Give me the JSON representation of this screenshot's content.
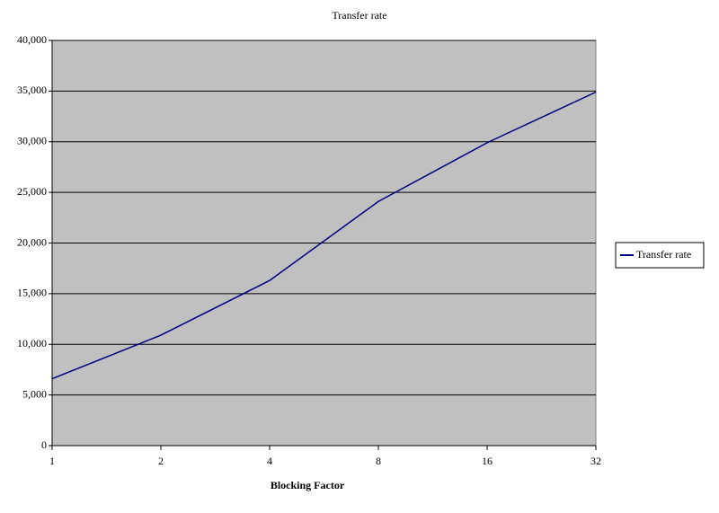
{
  "chart_data": {
    "type": "line",
    "title": "Transfer rate",
    "x_label": "Blocking Factor",
    "categories": [
      "1",
      "2",
      "4",
      "8",
      "16",
      "32"
    ],
    "series": [
      {
        "name": "Transfer rate",
        "color": "#000080",
        "values": [
          6600,
          10900,
          16300,
          24100,
          29900,
          34900
        ]
      }
    ],
    "ylim": [
      0,
      40000
    ],
    "yticks": [
      0,
      {
        "value": 5000,
        "label": "5,000"
      },
      {
        "value": 10000,
        "label": "10,000"
      },
      {
        "value": 15000,
        "label": "15,000"
      },
      {
        "value": 20000,
        "label": "20,000"
      },
      {
        "value": 25000,
        "label": "25,000"
      },
      {
        "value": 30000,
        "label": "30,000"
      },
      {
        "value": 35000,
        "label": "35,000"
      },
      {
        "value": 40000,
        "label": "40,000"
      }
    ],
    "grid": true,
    "legend": "right",
    "plot_background": "#c0c0c0"
  }
}
